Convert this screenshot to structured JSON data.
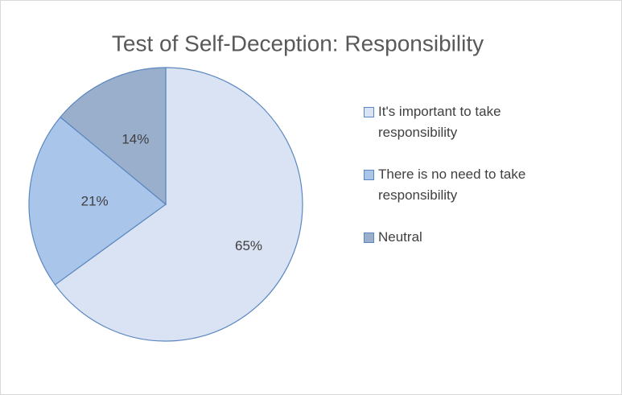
{
  "chart_data": {
    "type": "pie",
    "title": "Test of Self-Deception: Responsibility",
    "categories": [
      "It's important to take responsibility",
      "There is no need to take responsibility",
      "Neutral"
    ],
    "values": [
      65,
      21,
      14
    ],
    "value_labels": [
      "65%",
      "21%",
      "14%"
    ],
    "colors": [
      "#dae3f3",
      "#a9c5ea",
      "#9aafcc"
    ],
    "legend": "right"
  }
}
